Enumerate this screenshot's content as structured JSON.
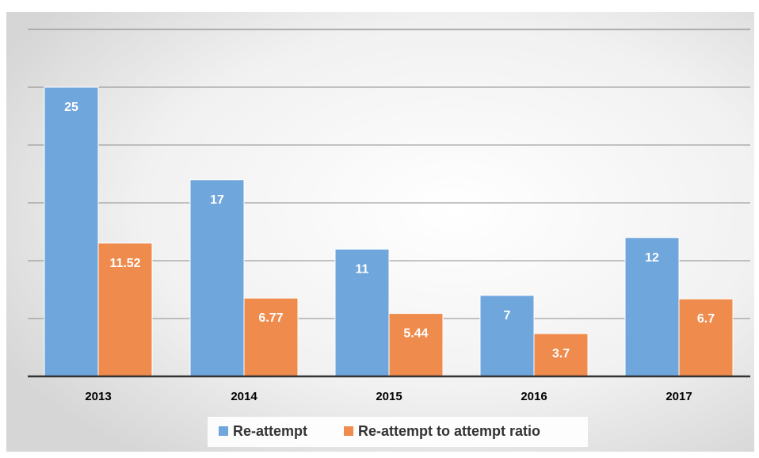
{
  "chart_data": {
    "type": "bar",
    "categories": [
      "2013",
      "2014",
      "2015",
      "2016",
      "2017"
    ],
    "series": [
      {
        "name": "Re-attempt",
        "values": [
          25,
          17,
          11,
          7,
          12
        ],
        "labels": [
          "25",
          "17",
          "11",
          "7",
          "12"
        ]
      },
      {
        "name": "Re-attempt to attempt ratio",
        "values": [
          11.52,
          6.77,
          5.44,
          3.7,
          6.7
        ],
        "labels": [
          "11.52",
          "6.77",
          "5.44",
          "3.7",
          "6.7"
        ]
      }
    ],
    "ylim": [
      0,
      30
    ],
    "y_gridline_step": 5,
    "y_tick_labels_shown": false,
    "grid": true,
    "legend_position": "bottom",
    "colors": {
      "Re-attempt": "#6fa6dc",
      "Re-attempt to attempt ratio": "#ef8b4d",
      "axis": "#333333",
      "gridline": "#8c8c8c",
      "data_label": "#ffffff",
      "category_label": "#000000"
    },
    "title": "",
    "xlabel": "",
    "ylabel": ""
  }
}
